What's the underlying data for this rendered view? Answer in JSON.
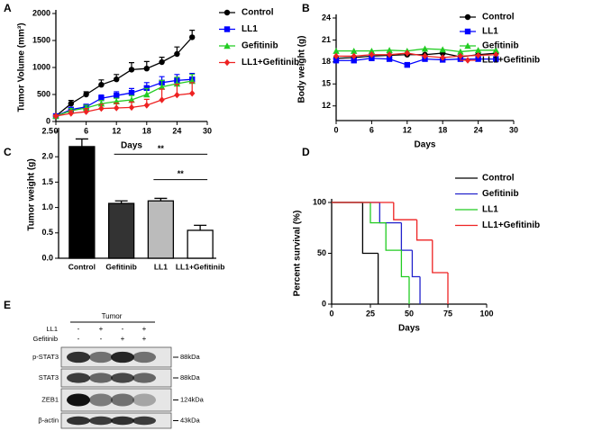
{
  "panel_labels": [
    "A",
    "B",
    "C",
    "D",
    "E"
  ],
  "chart_data": [
    {
      "type": "line",
      "ylabel": "Tumor Volume (mm³)",
      "xlabel": "Days",
      "x": [
        0,
        3,
        6,
        9,
        12,
        15,
        18,
        21,
        24,
        27
      ],
      "xlim": [
        0,
        30
      ],
      "xticks": [
        0,
        6,
        12,
        18,
        24,
        30
      ],
      "ylim": [
        0,
        2000
      ],
      "yticks": [
        0,
        500,
        1000,
        1500,
        2000
      ],
      "legend": "right",
      "series": [
        {
          "name": "Control",
          "color": "#000000",
          "marker": "circle",
          "values": [
            100,
            330,
            500,
            680,
            780,
            960,
            980,
            1100,
            1250,
            1560
          ],
          "errors": [
            20,
            60,
            50,
            90,
            90,
            130,
            130,
            90,
            130,
            130
          ]
        },
        {
          "name": "LL1",
          "color": "#0000ff",
          "marker": "square",
          "values": [
            100,
            220,
            270,
            430,
            480,
            530,
            620,
            720,
            760,
            780
          ],
          "errors": [
            20,
            40,
            50,
            60,
            70,
            80,
            100,
            110,
            110,
            110
          ]
        },
        {
          "name": "Gefitinib",
          "color": "#22cc22",
          "marker": "triangle",
          "values": [
            100,
            200,
            250,
            330,
            370,
            400,
            500,
            640,
            700,
            750
          ],
          "errors": [
            20,
            40,
            50,
            60,
            60,
            80,
            110,
            120,
            120,
            120
          ]
        },
        {
          "name": "LL1+Gefitinib",
          "color": "#ee2222",
          "marker": "diamond",
          "values": [
            100,
            150,
            180,
            240,
            250,
            260,
            300,
            400,
            490,
            520
          ],
          "errors": [
            20,
            50,
            60,
            80,
            90,
            100,
            110,
            200,
            200,
            200
          ]
        }
      ]
    },
    {
      "type": "line",
      "ylabel": "Body weight (g)",
      "xlabel": "Days",
      "x": [
        0,
        3,
        6,
        9,
        12,
        15,
        18,
        21,
        24,
        27
      ],
      "xlim": [
        0,
        30
      ],
      "xticks": [
        0,
        6,
        12,
        18,
        24,
        30
      ],
      "ylim": [
        10,
        24
      ],
      "yticks": [
        12,
        15,
        18,
        21,
        24
      ],
      "legend": "right",
      "series": [
        {
          "name": "Control",
          "color": "#000000",
          "marker": "circle",
          "values": [
            18.5,
            18.6,
            18.8,
            18.9,
            19,
            19,
            19.2,
            18.7,
            19,
            19.2
          ]
        },
        {
          "name": "LL1",
          "color": "#0000ff",
          "marker": "square",
          "values": [
            18.2,
            18.2,
            18.5,
            18.4,
            17.6,
            18.4,
            18.3,
            18.4,
            18.4,
            18.4
          ]
        },
        {
          "name": "Gefitinib",
          "color": "#22cc22",
          "marker": "triangle",
          "values": [
            19.5,
            19.5,
            19.5,
            19.6,
            19.5,
            19.8,
            19.7,
            19.4,
            19.6,
            19.6
          ]
        },
        {
          "name": "LL1+Gefitinib",
          "color": "#ee2222",
          "marker": "diamond",
          "values": [
            18.8,
            18.8,
            19,
            19,
            19.2,
            18.8,
            18.6,
            18.8,
            18.9,
            19
          ]
        }
      ]
    },
    {
      "type": "bar",
      "ylabel": "Tumor weight (g)",
      "categories": [
        "Control",
        "Gefitinib",
        "LL1",
        "LL1+Gefitinib"
      ],
      "values": [
        2.2,
        1.08,
        1.13,
        0.55
      ],
      "errors": [
        0.15,
        0.05,
        0.05,
        0.1
      ],
      "colors": [
        "#000000",
        "#333333",
        "#bbbbbb",
        "#ffffff"
      ],
      "ylim": [
        0,
        2.5
      ],
      "yticks": [
        {
          "value": 0,
          "label": "0.0"
        },
        {
          "value": 0.5,
          "label": "0.5"
        },
        {
          "value": 1,
          "label": "1.0"
        },
        {
          "value": 1.5,
          "label": "1.5"
        },
        {
          "value": 2,
          "label": "2.0"
        },
        {
          "value": 2.5,
          "label": "2.5"
        }
      ],
      "annotations": [
        "**",
        "**"
      ]
    },
    {
      "type": "step",
      "ylabel": "Percent survival (%)",
      "xlabel": "Days",
      "xlim": [
        0,
        100
      ],
      "xticks": [
        0,
        25,
        50,
        75,
        100
      ],
      "ylim": [
        0,
        100
      ],
      "yticks": [
        0,
        50,
        100
      ],
      "legend": "right",
      "series": [
        {
          "name": "Control",
          "color": "#000000",
          "x": [
            0,
            20,
            30
          ],
          "values": [
            100,
            50,
            0
          ]
        },
        {
          "name": "Gefitinib",
          "color": "#2222cc",
          "x": [
            0,
            31,
            45,
            52,
            57
          ],
          "values": [
            100,
            80,
            53,
            27,
            0
          ]
        },
        {
          "name": "LL1",
          "color": "#22cc22",
          "x": [
            0,
            25,
            35,
            45,
            50
          ],
          "values": [
            100,
            80,
            53,
            27,
            0
          ]
        },
        {
          "name": "LL1+Gefitinib",
          "color": "#ee2222",
          "x": [
            0,
            40,
            55,
            65,
            75
          ],
          "values": [
            100,
            83,
            63,
            31,
            0
          ]
        }
      ]
    }
  ],
  "blot": {
    "header": "Tumor",
    "treatments": [
      {
        "name": "LL1",
        "signs": [
          "-",
          "+",
          "-",
          "+"
        ]
      },
      {
        "name": "Gefitinib",
        "signs": [
          "-",
          "-",
          "+",
          "+"
        ]
      }
    ],
    "rows": [
      {
        "name": "p-STAT3",
        "size": "88kDa"
      },
      {
        "name": "STAT3",
        "size": "88kDa"
      },
      {
        "name": "ZEB1",
        "size": "124kDa"
      },
      {
        "name": "β-actin",
        "size": "43kDa"
      }
    ]
  }
}
